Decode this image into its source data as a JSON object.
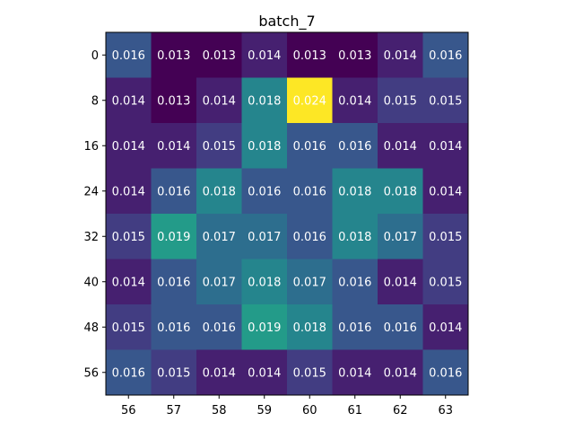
{
  "chart_data": {
    "type": "heatmap",
    "title": "batch_7",
    "xlabel": "",
    "ylabel": "",
    "x_ticks": [
      "56",
      "57",
      "58",
      "59",
      "60",
      "61",
      "62",
      "63"
    ],
    "y_ticks": [
      "0",
      "8",
      "16",
      "24",
      "32",
      "40",
      "48",
      "56"
    ],
    "colormap": "viridis",
    "vmin": 0.013,
    "vmax": 0.024,
    "values": [
      [
        0.016,
        0.013,
        0.013,
        0.014,
        0.013,
        0.013,
        0.014,
        0.016
      ],
      [
        0.014,
        0.013,
        0.014,
        0.018,
        0.024,
        0.014,
        0.015,
        0.015
      ],
      [
        0.014,
        0.014,
        0.015,
        0.018,
        0.016,
        0.016,
        0.014,
        0.014
      ],
      [
        0.014,
        0.016,
        0.018,
        0.016,
        0.016,
        0.018,
        0.018,
        0.014
      ],
      [
        0.015,
        0.019,
        0.017,
        0.017,
        0.016,
        0.018,
        0.017,
        0.015
      ],
      [
        0.014,
        0.016,
        0.017,
        0.018,
        0.017,
        0.016,
        0.014,
        0.015
      ],
      [
        0.015,
        0.016,
        0.016,
        0.019,
        0.018,
        0.016,
        0.016,
        0.014
      ],
      [
        0.016,
        0.015,
        0.014,
        0.014,
        0.015,
        0.014,
        0.014,
        0.016
      ]
    ],
    "cell_labels": [
      [
        "0.016",
        "0.013",
        "0.013",
        "0.014",
        "0.013",
        "0.013",
        "0.014",
        "0.016"
      ],
      [
        "0.014",
        "0.013",
        "0.014",
        "0.018",
        "0.024",
        "0.014",
        "0.015",
        "0.015"
      ],
      [
        "0.014",
        "0.014",
        "0.015",
        "0.018",
        "0.016",
        "0.016",
        "0.014",
        "0.014"
      ],
      [
        "0.014",
        "0.016",
        "0.018",
        "0.016",
        "0.016",
        "0.018",
        "0.018",
        "0.014"
      ],
      [
        "0.015",
        "0.019",
        "0.017",
        "0.017",
        "0.016",
        "0.018",
        "0.017",
        "0.015"
      ],
      [
        "0.014",
        "0.016",
        "0.017",
        "0.018",
        "0.017",
        "0.016",
        "0.014",
        "0.015"
      ],
      [
        "0.015",
        "0.016",
        "0.016",
        "0.019",
        "0.018",
        "0.016",
        "0.016",
        "0.014"
      ],
      [
        "0.016",
        "0.015",
        "0.014",
        "0.014",
        "0.015",
        "0.014",
        "0.014",
        "0.016"
      ]
    ],
    "grid": false,
    "legend": "none"
  }
}
